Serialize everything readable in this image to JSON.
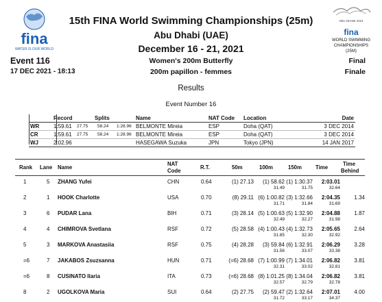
{
  "header": {
    "title": "15th FINA World Swimming Championships (25m)",
    "location": "Abu Dhabi (UAE)",
    "dates": "December 16 - 21, 2021",
    "logo_left_text": "WATER IS OUR WORLD",
    "logo_right_lines": [
      "ABU DHABI 2021",
      "WORLD SWIMMING",
      "CHAMPIONSHIPS",
      "(25M)"
    ]
  },
  "event": {
    "number": "Event 116",
    "datetime": "17 DEC 2021 - 18:13",
    "name_en": "Women's 200m Butterfly",
    "name_fr": "200m papillon - femmes",
    "status_en": "Final",
    "status_fr": "Finale"
  },
  "results_title": "Results",
  "event_number_label": "Event Number 16",
  "records": {
    "headers": [
      "Record",
      "Splits",
      "Name",
      "NAT Code",
      "Location",
      "Date"
    ],
    "rows": [
      {
        "type": "WR",
        "time": "1:59.61",
        "s1": "27.75",
        "s2": "58.24",
        "s3": "1:28.96",
        "name": "BELMONTE Mireia",
        "nat": "ESP",
        "loc": "Doha (QAT)",
        "date": "3 DEC 2014"
      },
      {
        "type": "CR",
        "time": "1:59.61",
        "s1": "27.75",
        "s2": "58.24",
        "s3": "1:28.96",
        "name": "BELMONTE Mireia",
        "nat": "ESP",
        "loc": "Doha (QAT)",
        "date": "3 DEC 2014"
      },
      {
        "type": "WJ",
        "time": "2:02.96",
        "s1": "",
        "s2": "",
        "s3": "",
        "name": "HASEGAWA Suzuka",
        "nat": "JPN",
        "loc": "Tokyo (JPN)",
        "date": "14 JAN 2017"
      }
    ]
  },
  "results": {
    "headers": {
      "rank": "Rank",
      "lane": "Lane",
      "name": "Name",
      "nat1": "NAT",
      "nat2": "Code",
      "rt": "R.T.",
      "m50": "50m",
      "m100": "100m",
      "m150": "150m",
      "time": "Time",
      "tb1": "Time",
      "tb2": "Behind"
    },
    "rows": [
      {
        "rank": "1",
        "lane": "5",
        "name": "ZHANG Yufei",
        "nat": "CHN",
        "rt": "0.64",
        "s50": "(1) 27.13",
        "s100": "(1) 58.62",
        "s150": "(1) 1:30.37",
        "time": "2:03.01",
        "behind": "",
        "sp100": "31.49",
        "sp150": "31.75",
        "sp200": "32.64"
      },
      {
        "rank": "2",
        "lane": "1",
        "name": "HOOK Charlotte",
        "nat": "USA",
        "rt": "0.70",
        "s50": "(8) 29.11",
        "s100": "(6) 1:00.82",
        "s150": "(3) 1:32.66",
        "time": "2:04.35",
        "behind": "1.34",
        "sp100": "31.71",
        "sp150": "31.84",
        "sp200": "31.69"
      },
      {
        "rank": "3",
        "lane": "6",
        "name": "PUDAR Lana",
        "nat": "BIH",
        "rt": "0.71",
        "s50": "(3) 28.14",
        "s100": "(5) 1:00.63",
        "s150": "(5) 1:32.90",
        "time": "2:04.88",
        "behind": "1.87",
        "sp100": "32.49",
        "sp150": "32.27",
        "sp200": "31.98"
      },
      {
        "rank": "4",
        "lane": "4",
        "name": "CHIMROVA Svetlana",
        "nat": "RSF",
        "rt": "0.72",
        "s50": "(5) 28.58",
        "s100": "(4) 1:00.43",
        "s150": "(4) 1:32.73",
        "time": "2:05.65",
        "behind": "2.64",
        "sp100": "31.85",
        "sp150": "32.30",
        "sp200": "32.92"
      },
      {
        "rank": "5",
        "lane": "3",
        "name": "MARKOVA Anastasiia",
        "nat": "RSF",
        "rt": "0.75",
        "s50": "(4) 28.28",
        "s100": "(3) 59.84",
        "s150": "(6) 1:32.91",
        "time": "2:06.29",
        "behind": "3.28",
        "sp100": "31.56",
        "sp150": "33.07",
        "sp200": "33.38"
      },
      {
        "rank": "=6",
        "lane": "7",
        "name": "JAKABOS Zsuzsanna",
        "nat": "HUN",
        "rt": "0.71",
        "s50": "(=6) 28.68",
        "s100": "(7) 1:00.99",
        "s150": "(7) 1:34.01",
        "time": "2:06.82",
        "behind": "3.81",
        "sp100": "32.31",
        "sp150": "33.02",
        "sp200": "32.81"
      },
      {
        "rank": "=6",
        "lane": "8",
        "name": "CUSINATO Ilaria",
        "nat": "ITA",
        "rt": "0.73",
        "s50": "(=6) 28.68",
        "s100": "(8) 1:01.25",
        "s150": "(8) 1:34.04",
        "time": "2:06.82",
        "behind": "3.81",
        "sp100": "32.57",
        "sp150": "32.79",
        "sp200": "32.78"
      },
      {
        "rank": "8",
        "lane": "2",
        "name": "UGOLKOVA Maria",
        "nat": "SUI",
        "rt": "0.64",
        "s50": "(2) 27.75",
        "s100": "(2) 59.47",
        "s150": "(2) 1:32.64",
        "time": "2:07.01",
        "behind": "4.00",
        "sp100": "31.72",
        "sp150": "33.17",
        "sp200": "34.37"
      }
    ]
  },
  "colors": {
    "fina_blue": "#1a5fb4",
    "text": "#111111"
  }
}
